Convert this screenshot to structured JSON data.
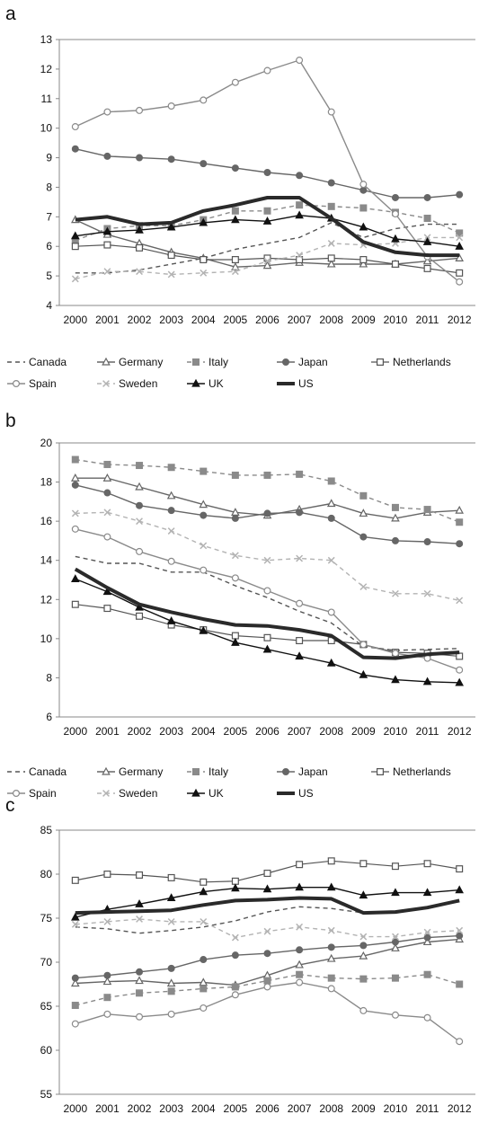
{
  "figure": {
    "panels": [
      "a",
      "b",
      "c"
    ]
  },
  "legend": {
    "rows": [
      [
        "Canada",
        "Germany",
        "Italy",
        "Japan",
        "Netherlands"
      ],
      [
        "Spain",
        "Sweden",
        "UK",
        "US"
      ]
    ]
  },
  "series_styles": {
    "Canada": {
      "color": "#555555",
      "dash": "5,4",
      "marker": "none",
      "width": 1.4
    },
    "Germany": {
      "color": "#666666",
      "dash": "",
      "marker": "triangle-open",
      "width": 1.4
    },
    "Italy": {
      "color": "#8a8a8a",
      "dash": "5,4",
      "marker": "square",
      "width": 1.4
    },
    "Japan": {
      "color": "#666666",
      "dash": "",
      "marker": "circle",
      "width": 1.4
    },
    "Netherlands": {
      "color": "#555555",
      "dash": "",
      "marker": "square-open",
      "width": 1.2
    },
    "Spain": {
      "color": "#8a8a8a",
      "dash": "",
      "marker": "circle-open",
      "width": 1.4
    },
    "Sweden": {
      "color": "#b3b3b3",
      "dash": "5,4",
      "marker": "x",
      "width": 1.4
    },
    "UK": {
      "color": "#111111",
      "dash": "",
      "marker": "triangle",
      "width": 1.4
    },
    "US": {
      "color": "#2a2a2a",
      "dash": "",
      "marker": "none",
      "width": 4
    }
  },
  "chart_data": [
    {
      "panel": "a",
      "type": "line",
      "x": [
        "2000",
        "2001",
        "2002",
        "2003",
        "2004",
        "2005",
        "2006",
        "2007",
        "2008",
        "2009",
        "2010",
        "2011",
        "2012"
      ],
      "ylim": [
        4,
        13
      ],
      "yticks": [
        4,
        5,
        6,
        7,
        8,
        9,
        10,
        11,
        12,
        13
      ],
      "grid": false,
      "legend_position": "bottom",
      "series": [
        {
          "name": "Canada",
          "values": [
            5.1,
            5.1,
            5.2,
            5.4,
            5.6,
            5.9,
            6.1,
            6.3,
            6.8,
            6.3,
            6.6,
            6.75,
            6.75
          ]
        },
        {
          "name": "Germany",
          "values": [
            6.9,
            6.4,
            6.1,
            5.8,
            5.6,
            5.3,
            5.35,
            5.45,
            5.4,
            5.4,
            5.4,
            5.5,
            5.6
          ]
        },
        {
          "name": "Italy",
          "values": [
            6.2,
            6.6,
            6.7,
            6.7,
            6.9,
            7.2,
            7.2,
            7.4,
            7.35,
            7.3,
            7.15,
            6.95,
            6.45
          ]
        },
        {
          "name": "Japan",
          "values": [
            9.3,
            9.05,
            9.0,
            8.95,
            8.8,
            8.65,
            8.5,
            8.4,
            8.15,
            7.9,
            7.65,
            7.65,
            7.75
          ]
        },
        {
          "name": "Netherlands",
          "values": [
            6.0,
            6.05,
            5.95,
            5.7,
            5.55,
            5.55,
            5.6,
            5.55,
            5.6,
            5.55,
            5.4,
            5.25,
            5.1
          ]
        },
        {
          "name": "Spain",
          "values": [
            10.05,
            10.55,
            10.6,
            10.75,
            10.95,
            11.55,
            11.95,
            12.3,
            10.55,
            8.1,
            7.1,
            5.65,
            4.8
          ]
        },
        {
          "name": "Sweden",
          "values": [
            4.9,
            5.15,
            5.15,
            5.05,
            5.1,
            5.15,
            5.5,
            5.7,
            6.1,
            6.05,
            6.1,
            6.3,
            6.3
          ]
        },
        {
          "name": "UK",
          "values": [
            6.35,
            6.5,
            6.55,
            6.65,
            6.8,
            6.9,
            6.85,
            7.05,
            6.95,
            6.65,
            6.25,
            6.15,
            6.0
          ]
        },
        {
          "name": "US",
          "values": [
            6.9,
            7.0,
            6.75,
            6.8,
            7.2,
            7.4,
            7.65,
            7.65,
            6.95,
            6.15,
            5.8,
            5.7,
            5.7
          ]
        }
      ]
    },
    {
      "panel": "b",
      "type": "line",
      "x": [
        "2000",
        "2001",
        "2002",
        "2003",
        "2004",
        "2005",
        "2006",
        "2007",
        "2008",
        "2009",
        "2010",
        "2011",
        "2012"
      ],
      "ylim": [
        6,
        20
      ],
      "yticks": [
        6,
        8,
        10,
        12,
        14,
        16,
        18,
        20
      ],
      "grid": false,
      "legend_position": "bottom",
      "series": [
        {
          "name": "Canada",
          "values": [
            14.2,
            13.85,
            13.85,
            13.4,
            13.4,
            12.7,
            12.1,
            11.4,
            10.8,
            9.6,
            9.4,
            9.45,
            9.5
          ]
        },
        {
          "name": "Germany",
          "values": [
            18.2,
            18.2,
            17.75,
            17.3,
            16.85,
            16.45,
            16.3,
            16.6,
            16.9,
            16.4,
            16.15,
            16.45,
            16.55
          ]
        },
        {
          "name": "Italy",
          "values": [
            19.15,
            18.9,
            18.85,
            18.75,
            18.55,
            18.35,
            18.35,
            18.4,
            18.05,
            17.3,
            16.7,
            16.6,
            15.95
          ]
        },
        {
          "name": "Japan",
          "values": [
            17.85,
            17.45,
            16.8,
            16.55,
            16.3,
            16.15,
            16.4,
            16.45,
            16.15,
            15.2,
            15.0,
            14.95,
            14.85
          ]
        },
        {
          "name": "Netherlands",
          "values": [
            11.75,
            11.55,
            11.15,
            10.7,
            10.45,
            10.15,
            10.05,
            9.9,
            9.9,
            9.7,
            9.3,
            9.25,
            9.1
          ]
        },
        {
          "name": "Spain",
          "values": [
            15.6,
            15.2,
            14.45,
            13.95,
            13.5,
            13.1,
            12.45,
            11.8,
            11.35,
            9.7,
            9.25,
            9.0,
            8.4
          ]
        },
        {
          "name": "Sweden",
          "values": [
            16.4,
            16.45,
            16.0,
            15.5,
            14.75,
            14.25,
            14.0,
            14.1,
            14.0,
            12.65,
            12.3,
            12.3,
            11.95
          ]
        },
        {
          "name": "UK",
          "values": [
            13.05,
            12.4,
            11.6,
            10.9,
            10.4,
            9.8,
            9.45,
            9.1,
            8.75,
            8.15,
            7.9,
            7.8,
            7.75
          ]
        },
        {
          "name": "US",
          "values": [
            13.55,
            12.6,
            11.75,
            11.35,
            11.0,
            10.7,
            10.65,
            10.45,
            10.15,
            9.05,
            9.0,
            9.2,
            9.3
          ]
        }
      ]
    },
    {
      "panel": "c",
      "type": "line",
      "x": [
        "2000",
        "2001",
        "2002",
        "2003",
        "2004",
        "2005",
        "2006",
        "2007",
        "2008",
        "2009",
        "2010",
        "2011",
        "2012"
      ],
      "ylim": [
        55,
        85
      ],
      "yticks": [
        55,
        60,
        65,
        70,
        75,
        80,
        85
      ],
      "grid": false,
      "legend_position": "bottom",
      "series": [
        {
          "name": "Canada",
          "values": [
            74.0,
            73.8,
            73.3,
            73.6,
            74.0,
            74.7,
            75.7,
            76.3,
            76.1,
            75.6,
            75.8,
            76.2,
            76.9
          ]
        },
        {
          "name": "Germany",
          "values": [
            67.6,
            67.8,
            67.9,
            67.6,
            67.7,
            67.4,
            68.5,
            69.7,
            70.4,
            70.7,
            71.6,
            72.3,
            72.6
          ]
        },
        {
          "name": "Italy",
          "values": [
            65.1,
            66.0,
            66.5,
            66.7,
            67.0,
            67.2,
            67.9,
            68.6,
            68.2,
            68.1,
            68.2,
            68.6,
            67.5
          ]
        },
        {
          "name": "Japan",
          "values": [
            68.2,
            68.5,
            68.9,
            69.3,
            70.3,
            70.8,
            71.0,
            71.4,
            71.7,
            71.9,
            72.3,
            72.8,
            73.0
          ]
        },
        {
          "name": "Netherlands",
          "values": [
            79.3,
            80.0,
            79.9,
            79.6,
            79.1,
            79.2,
            80.1,
            81.1,
            81.5,
            81.2,
            80.9,
            81.2,
            80.6
          ]
        },
        {
          "name": "Spain",
          "values": [
            63.0,
            64.1,
            63.8,
            64.1,
            64.8,
            66.3,
            67.2,
            67.7,
            67.0,
            64.5,
            64.0,
            63.7,
            61.0
          ]
        },
        {
          "name": "Sweden",
          "values": [
            74.3,
            74.6,
            74.9,
            74.6,
            74.6,
            72.8,
            73.5,
            74.0,
            73.6,
            72.9,
            72.9,
            73.4,
            73.6
          ]
        },
        {
          "name": "UK",
          "values": [
            75.1,
            76.0,
            76.6,
            77.3,
            78.0,
            78.4,
            78.3,
            78.5,
            78.5,
            77.6,
            77.9,
            77.9,
            78.2
          ]
        },
        {
          "name": "US",
          "values": [
            75.6,
            75.7,
            75.8,
            75.9,
            76.5,
            77.0,
            77.1,
            77.3,
            77.2,
            75.6,
            75.7,
            76.2,
            77.0
          ]
        }
      ]
    }
  ]
}
